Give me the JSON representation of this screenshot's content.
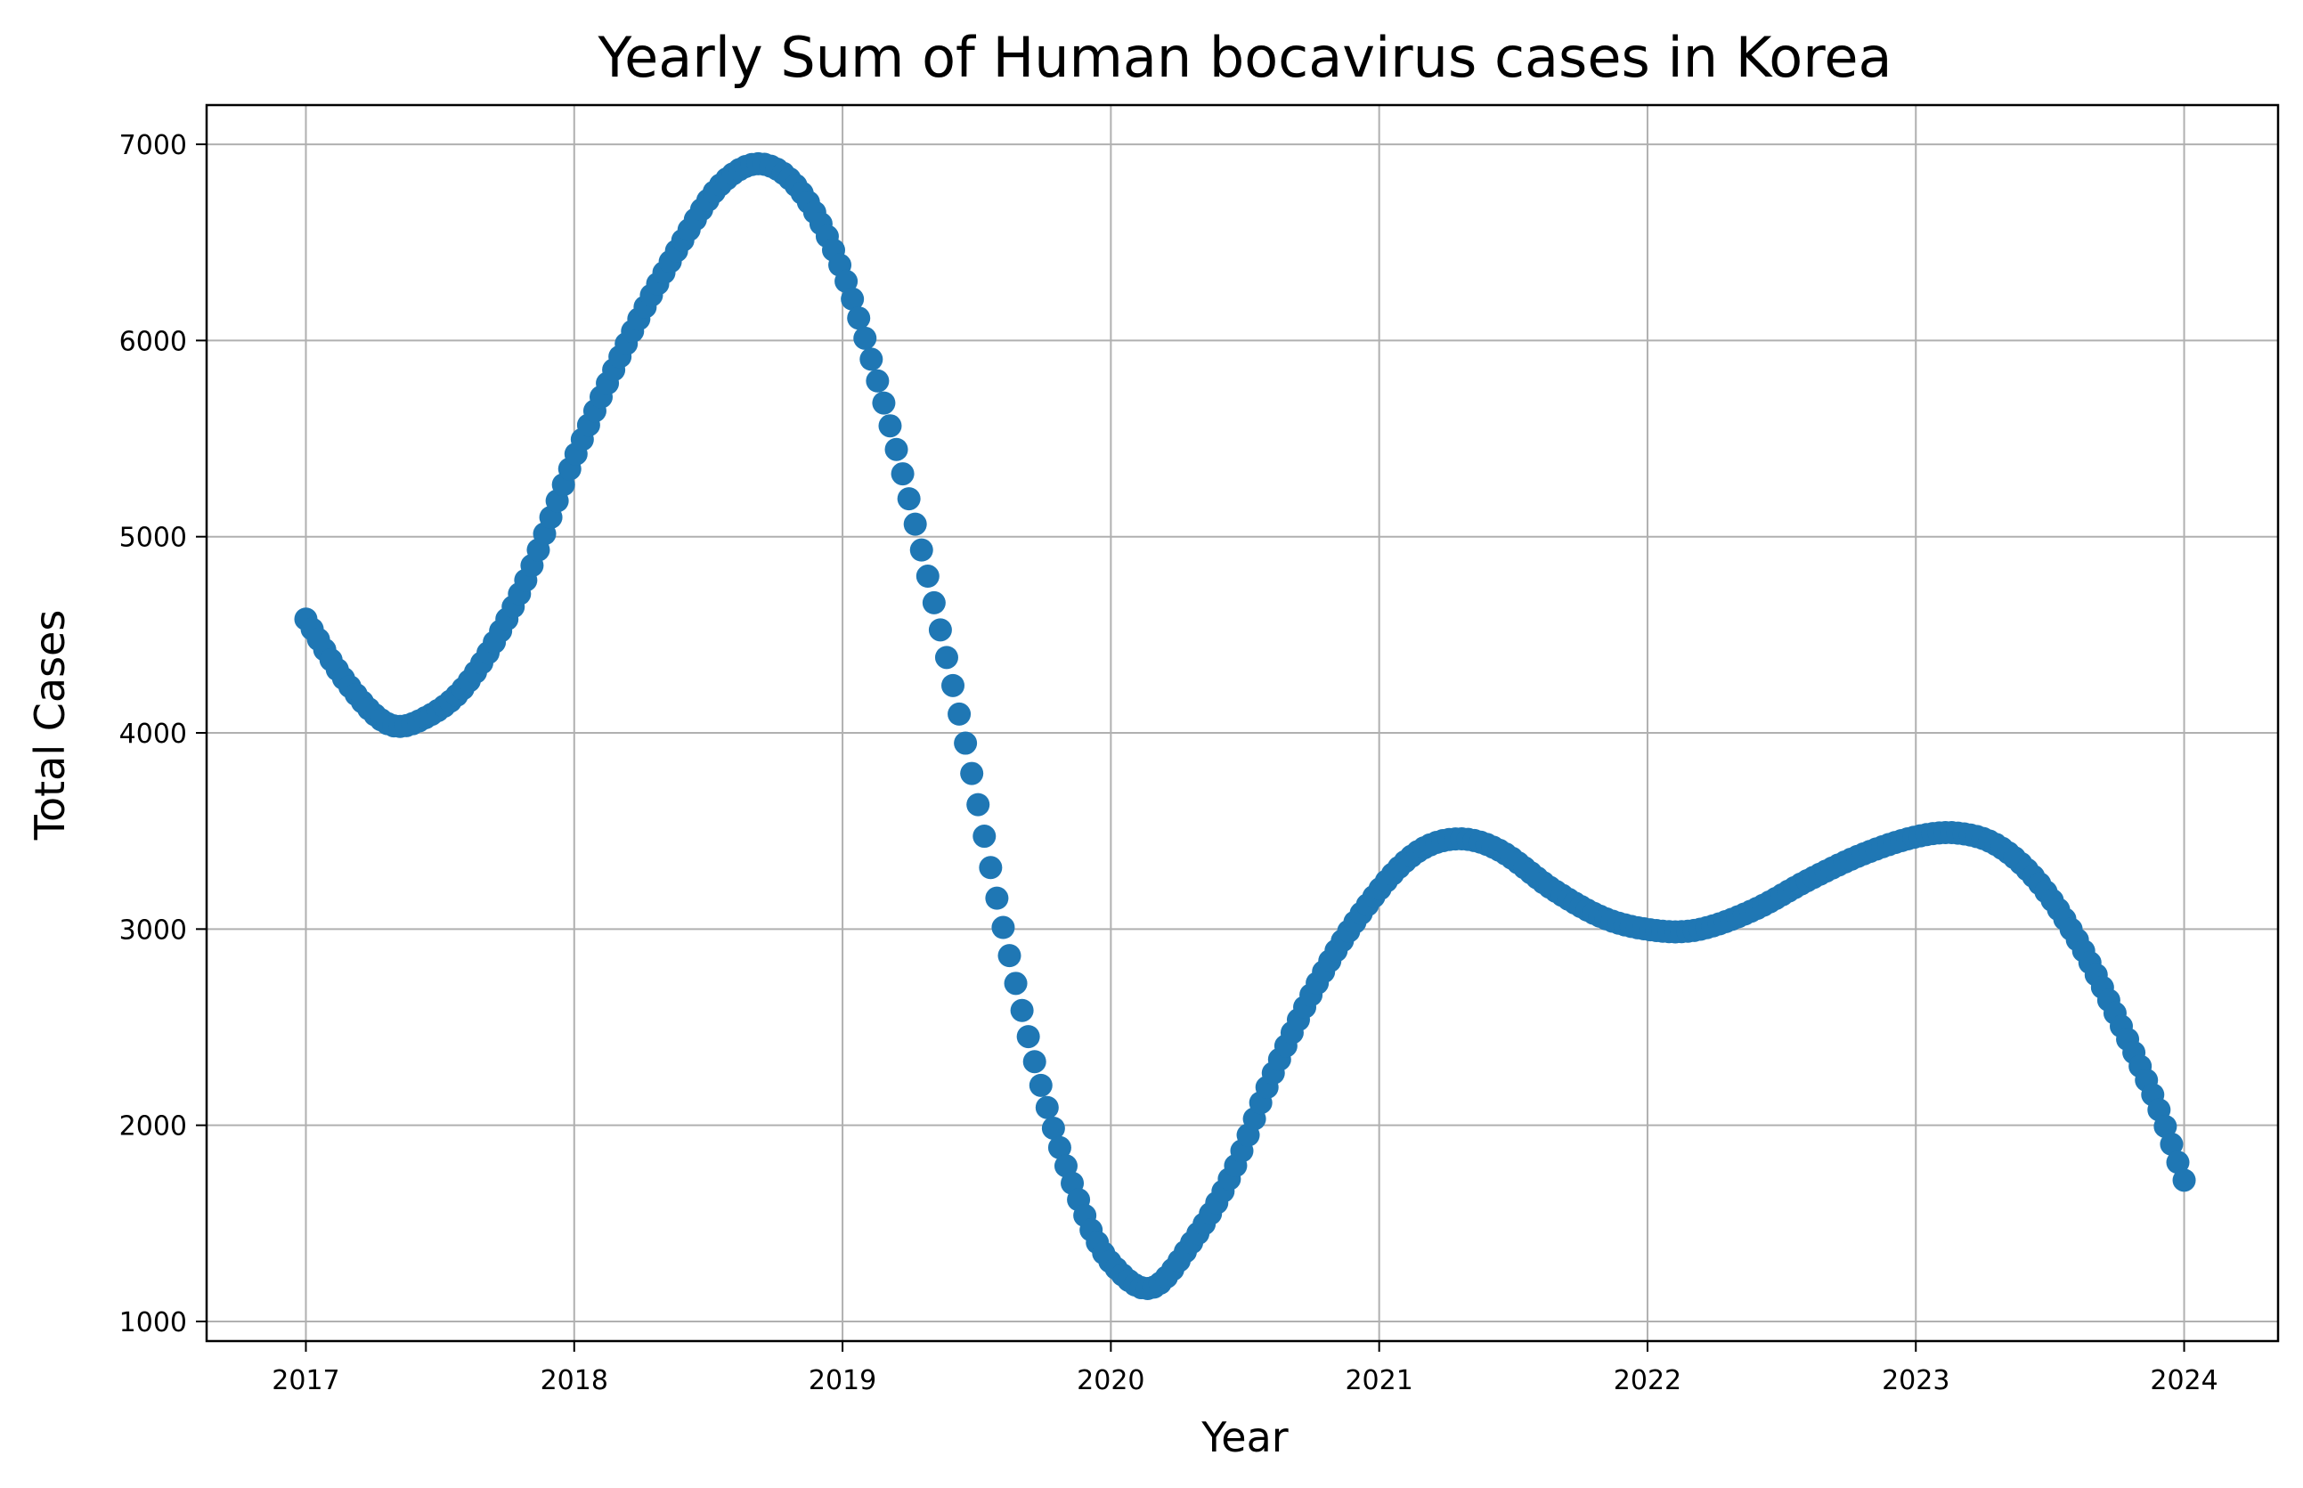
{
  "chart_data": {
    "type": "scatter",
    "title": "Yearly Sum of Human bocavirus cases in Korea",
    "xlabel": "Year",
    "ylabel": "Total Cases",
    "xlim": [
      2016.63,
      2024.35
    ],
    "ylim": [
      900,
      7200
    ],
    "x_ticks": [
      2017,
      2018,
      2019,
      2020,
      2021,
      2022,
      2023,
      2024
    ],
    "x_tick_labels": [
      "2017",
      "2018",
      "2019",
      "2020",
      "2021",
      "2022",
      "2023",
      "2024"
    ],
    "y_ticks": [
      1000,
      2000,
      3000,
      4000,
      5000,
      6000,
      7000
    ],
    "y_tick_labels": [
      "1000",
      "2000",
      "3000",
      "4000",
      "5000",
      "6000",
      "7000"
    ],
    "grid": true,
    "color": "#1f77b4",
    "series": [
      {
        "x_start": 2017.0,
        "x_end": 2024.0,
        "num_points": 300,
        "description_points": [
          [
            2017.0,
            4580
          ],
          [
            2017.15,
            4260
          ],
          [
            2017.3,
            4050
          ],
          [
            2017.42,
            4060
          ],
          [
            2017.6,
            4250
          ],
          [
            2017.8,
            4720
          ],
          [
            2018.0,
            5400
          ],
          [
            2018.2,
            6000
          ],
          [
            2018.4,
            6500
          ],
          [
            2018.55,
            6800
          ],
          [
            2018.7,
            6900
          ],
          [
            2018.85,
            6750
          ],
          [
            2019.0,
            6350
          ],
          [
            2019.15,
            5700
          ],
          [
            2019.3,
            4900
          ],
          [
            2019.45,
            4000
          ],
          [
            2019.6,
            3000
          ],
          [
            2019.75,
            2150
          ],
          [
            2019.9,
            1550
          ],
          [
            2020.0,
            1300
          ],
          [
            2020.15,
            1170
          ],
          [
            2020.3,
            1400
          ],
          [
            2020.45,
            1750
          ],
          [
            2020.6,
            2250
          ],
          [
            2020.8,
            2800
          ],
          [
            2021.0,
            3200
          ],
          [
            2021.15,
            3400
          ],
          [
            2021.3,
            3460
          ],
          [
            2021.45,
            3400
          ],
          [
            2021.65,
            3200
          ],
          [
            2021.85,
            3050
          ],
          [
            2022.05,
            2990
          ],
          [
            2022.2,
            3000
          ],
          [
            2022.4,
            3100
          ],
          [
            2022.6,
            3250
          ],
          [
            2022.8,
            3380
          ],
          [
            2023.0,
            3470
          ],
          [
            2023.15,
            3490
          ],
          [
            2023.3,
            3430
          ],
          [
            2023.45,
            3250
          ],
          [
            2023.6,
            2950
          ],
          [
            2023.75,
            2550
          ],
          [
            2023.9,
            2100
          ],
          [
            2024.0,
            1720
          ]
        ]
      }
    ]
  }
}
